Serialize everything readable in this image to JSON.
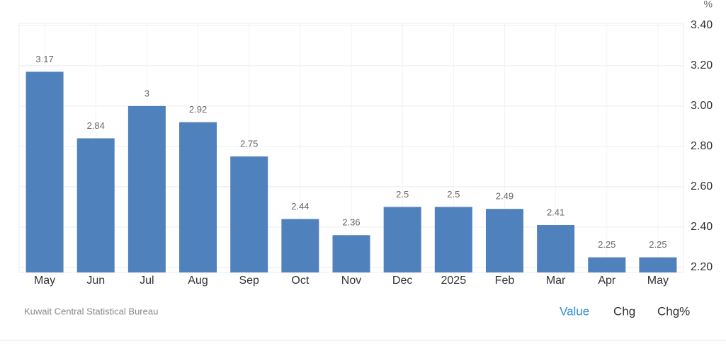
{
  "chart_data": {
    "type": "bar",
    "unit": "%",
    "categories": [
      "May",
      "Jun",
      "Jul",
      "Aug",
      "Sep",
      "Oct",
      "Nov",
      "Dec",
      "2025",
      "Feb",
      "Mar",
      "Apr",
      "May"
    ],
    "values": [
      3.17,
      2.84,
      3,
      2.92,
      2.75,
      2.44,
      2.36,
      2.5,
      2.5,
      2.49,
      2.41,
      2.25,
      2.25
    ],
    "color": "#4f81bd",
    "ylim": [
      2.175,
      3.41
    ],
    "yticks": [
      {
        "value": 2.2,
        "label": "2.20"
      },
      {
        "value": 2.4,
        "label": "2.40"
      },
      {
        "value": 2.6,
        "label": "2.60"
      },
      {
        "value": 2.8,
        "label": "2.80"
      },
      {
        "value": 3.0,
        "label": "3.00"
      },
      {
        "value": 3.2,
        "label": "3.20"
      },
      {
        "value": 3.4,
        "label": "3.40"
      }
    ],
    "grid": true,
    "source": "Kuwait Central Statistical Bureau",
    "buttons": [
      "Value",
      "Chg",
      "Chg%"
    ]
  }
}
